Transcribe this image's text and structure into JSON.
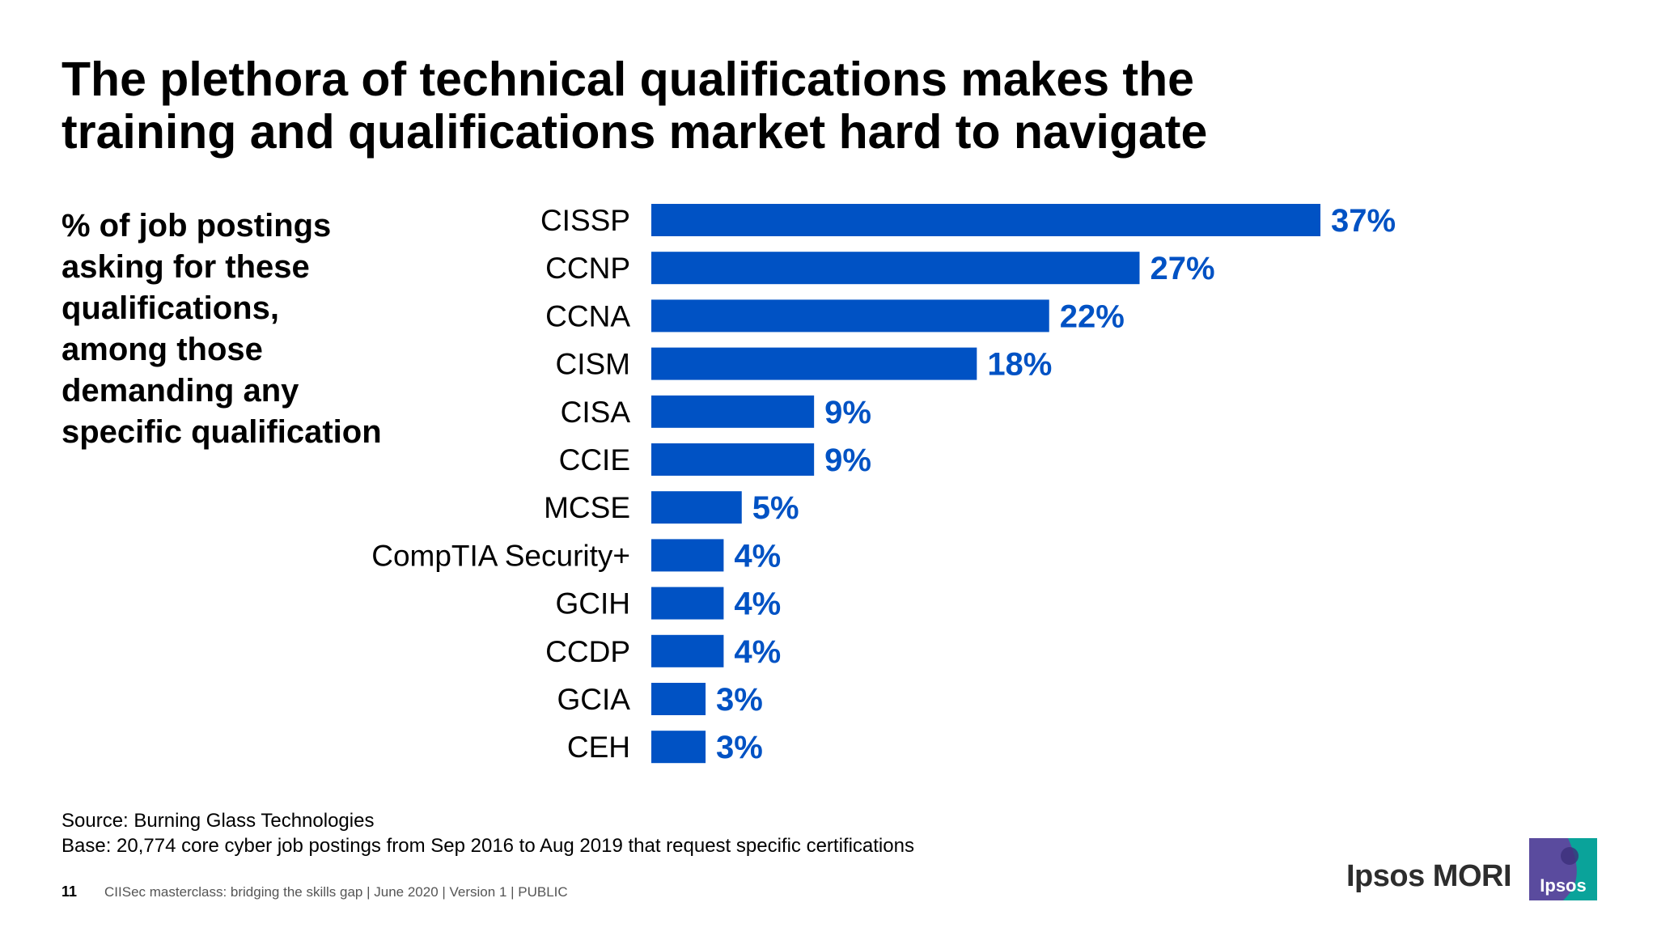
{
  "title_line1": "The plethora of technical qualifications makes the",
  "title_line2": "training and qualifications market hard to navigate",
  "subtitle": "% of job postings asking for these qualifications, among those demanding any specific qualification",
  "source_line": "Source: Burning Glass Technologies",
  "base_line": "Base: 20,774 core cyber job postings from Sep 2016 to Aug 2019 that request specific certifications",
  "footer": {
    "page_number": "11",
    "text": "CIISec masterclass: bridging the skills gap | June 2020 | Version 1 | PUBLIC"
  },
  "brand": {
    "name": "Ipsos MORI",
    "logo_text": "Ipsos",
    "logo_colors": [
      "#5a4b9e",
      "#0aa39a"
    ]
  },
  "colors": {
    "bar": "#0052c4",
    "value_label": "#0052c4"
  },
  "chart_data": {
    "type": "bar",
    "orientation": "horizontal",
    "categories": [
      "CISSP",
      "CCNP",
      "CCNA",
      "CISM",
      "CISA",
      "CCIE",
      "MCSE",
      "CompTIA Security+",
      "GCIH",
      "CCDP",
      "GCIA",
      "CEH"
    ],
    "values": [
      37,
      27,
      22,
      18,
      9,
      9,
      5,
      4,
      4,
      4,
      3,
      3
    ],
    "value_labels": [
      "37%",
      "27%",
      "22%",
      "18%",
      "9%",
      "9%",
      "5%",
      "4%",
      "4%",
      "4%",
      "3%",
      "3%"
    ],
    "unit": "%",
    "xlim": [
      0,
      37
    ],
    "grid": false,
    "legend": "none"
  }
}
